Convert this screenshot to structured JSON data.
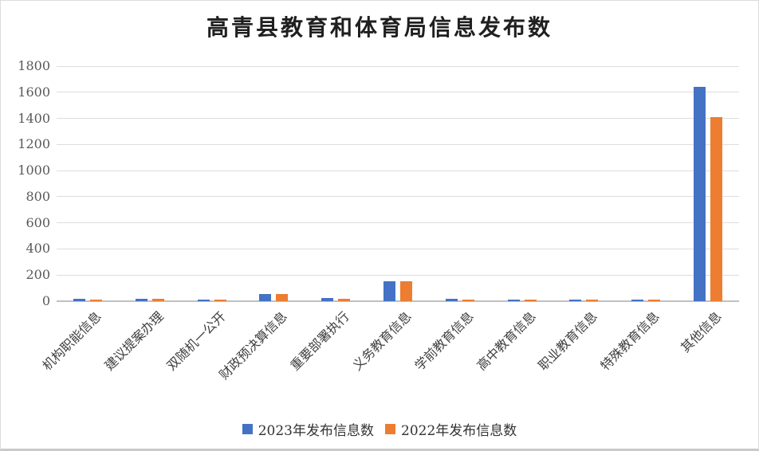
{
  "chart_data": {
    "type": "bar",
    "title": "高青县教育和体育局信息发布数",
    "categories": [
      "机构职能信息",
      "建议提案办理",
      "双随机一公开",
      "财政预决算信息",
      "重要部署执行",
      "义务教育信息",
      "学前教育信息",
      "高中教育信息",
      "职业教育信息",
      "特殊教育信息",
      "其他信息"
    ],
    "series": [
      {
        "name": "2023年发布信息数",
        "color": "#4472C4",
        "values": [
          20,
          20,
          12,
          55,
          22,
          155,
          21,
          12,
          10,
          10,
          1640
        ]
      },
      {
        "name": "2022年发布信息数",
        "color": "#ED7D31",
        "values": [
          10,
          17,
          10,
          52,
          18,
          155,
          10,
          10,
          10,
          10,
          1410
        ]
      }
    ],
    "xlabel": "",
    "ylabel": "",
    "ylim": [
      0,
      1800
    ],
    "ytick_interval": 200,
    "yticks": [
      0,
      200,
      400,
      600,
      800,
      1000,
      1200,
      1400,
      1600,
      1800
    ],
    "grid": true,
    "legend_position": "bottom",
    "colors": {
      "gridline": "#DDDDDD",
      "axis_line": "#C0C0C0",
      "tick_label": "#595959",
      "category_label": "#404040",
      "title": "#1F1F1F",
      "background": "#FFFFFF"
    }
  }
}
